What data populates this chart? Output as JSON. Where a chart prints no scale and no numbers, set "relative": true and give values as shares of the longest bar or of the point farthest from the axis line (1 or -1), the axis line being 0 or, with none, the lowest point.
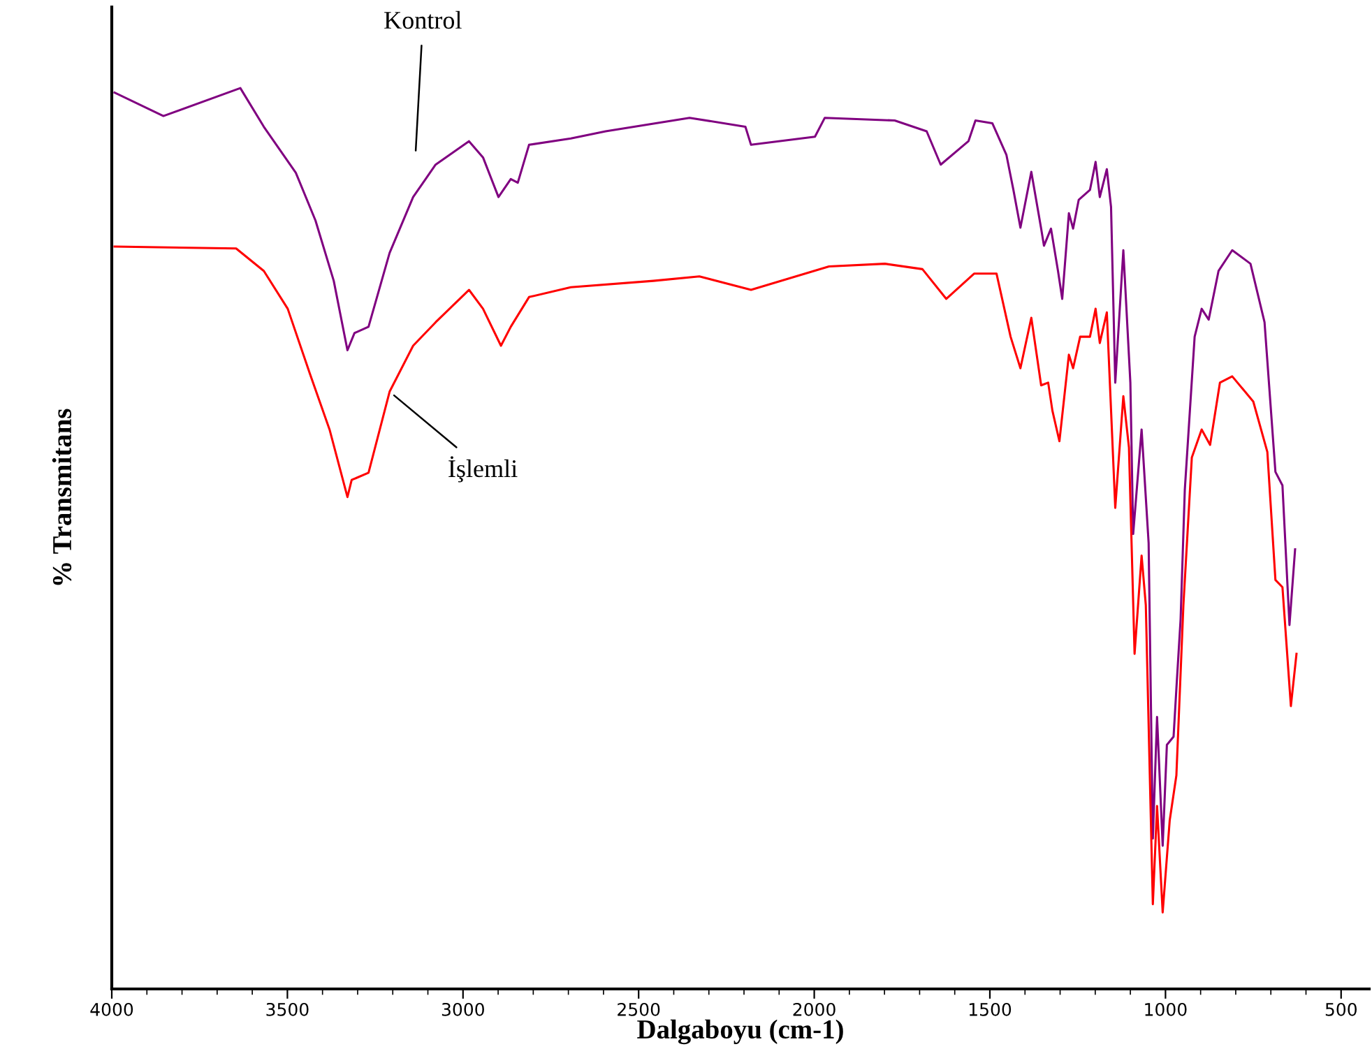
{
  "chart_data": {
    "type": "line",
    "relative": true,
    "xlabel": "Dalgaboyu (cm-1)",
    "ylabel": "% Transmitans",
    "xlim": [
      4000,
      420
    ],
    "xticks": [
      4000,
      {
        "value": 3900,
        "label": null
      },
      {
        "value": 3800,
        "label": null
      },
      {
        "value": 3700,
        "label": null
      },
      {
        "value": 3600,
        "label": null
      },
      3500,
      {
        "value": 3400,
        "label": null
      },
      {
        "value": 3300,
        "label": null
      },
      {
        "value": 3200,
        "label": null
      },
      {
        "value": 3100,
        "label": null
      },
      3000,
      {
        "value": 2900,
        "label": null
      },
      {
        "value": 2800,
        "label": null
      },
      {
        "value": 2700,
        "label": null
      },
      {
        "value": 2600,
        "label": null
      },
      2500,
      {
        "value": 2400,
        "label": null
      },
      {
        "value": 2300,
        "label": null
      },
      {
        "value": 2200,
        "label": null
      },
      {
        "value": 2100,
        "label": null
      },
      2000,
      {
        "value": 1900,
        "label": null
      },
      {
        "value": 1800,
        "label": null
      },
      {
        "value": 1700,
        "label": null
      },
      {
        "value": 1600,
        "label": null
      },
      1500,
      {
        "value": 1400,
        "label": null
      },
      {
        "value": 1300,
        "label": null
      },
      {
        "value": 1200,
        "label": null
      },
      {
        "value": 1100,
        "label": null
      },
      1000,
      {
        "value": 900,
        "label": null
      },
      {
        "value": 800,
        "label": null
      },
      {
        "value": 700,
        "label": null
      },
      {
        "value": 600,
        "label": null
      },
      500
    ],
    "grid": false,
    "legend": false,
    "marker": "none",
    "line_style": "solid",
    "series": [
      {
        "name": "Kontrol",
        "color": "#800080",
        "x": [
          3992,
          3853,
          3634,
          3567,
          3476,
          3420,
          3368,
          3329,
          3309,
          3269,
          3209,
          3142,
          3078,
          2983,
          2943,
          2899,
          2864,
          2844,
          2812,
          2693,
          2594,
          2355,
          2196,
          2180,
          1998,
          1970,
          1771,
          1680,
          1640,
          1561,
          1541,
          1493,
          1453,
          1433,
          1413,
          1382,
          1354,
          1346,
          1326,
          1306,
          1294,
          1275,
          1263,
          1247,
          1215,
          1199,
          1187,
          1167,
          1155,
          1143,
          1120,
          1100,
          1092,
          1068,
          1048,
          1036,
          1024,
          1008,
          996,
          977,
          969,
          957,
          945,
          917,
          897,
          877,
          849,
          810,
          758,
          718,
          687,
          667,
          647,
          631
        ],
        "values": [
          0.995,
          0.969,
          1.0,
          0.957,
          0.906,
          0.853,
          0.786,
          0.709,
          0.728,
          0.735,
          0.817,
          0.879,
          0.915,
          0.941,
          0.923,
          0.879,
          0.899,
          0.895,
          0.937,
          0.944,
          0.952,
          0.967,
          0.957,
          0.937,
          0.946,
          0.967,
          0.964,
          0.952,
          0.915,
          0.941,
          0.964,
          0.961,
          0.926,
          0.887,
          0.845,
          0.907,
          0.844,
          0.825,
          0.844,
          0.797,
          0.766,
          0.861,
          0.844,
          0.876,
          0.887,
          0.918,
          0.879,
          0.91,
          0.868,
          0.673,
          0.82,
          0.673,
          0.505,
          0.621,
          0.495,
          0.167,
          0.302,
          0.159,
          0.271,
          0.28,
          0.333,
          0.41,
          0.554,
          0.724,
          0.755,
          0.743,
          0.797,
          0.82,
          0.805,
          0.74,
          0.574,
          0.559,
          0.404,
          0.488
        ]
      },
      {
        "name": "İşlemli",
        "color": "#ff0000",
        "x": [
          3992,
          3646,
          3567,
          3499,
          3436,
          3380,
          3329,
          3317,
          3269,
          3209,
          3142,
          3078,
          2983,
          2943,
          2892,
          2864,
          2812,
          2693,
          2458,
          2327,
          2180,
          1958,
          1799,
          1692,
          1624,
          1545,
          1481,
          1441,
          1413,
          1382,
          1354,
          1334,
          1322,
          1302,
          1275,
          1263,
          1243,
          1215,
          1199,
          1187,
          1167,
          1143,
          1120,
          1104,
          1088,
          1068,
          1056,
          1036,
          1024,
          1008,
          988,
          969,
          949,
          925,
          897,
          873,
          845,
          810,
          750,
          710,
          687,
          667,
          643,
          627
        ],
        "values": [
          0.824,
          0.822,
          0.797,
          0.755,
          0.683,
          0.621,
          0.546,
          0.565,
          0.573,
          0.663,
          0.714,
          0.74,
          0.776,
          0.755,
          0.714,
          0.735,
          0.768,
          0.779,
          0.786,
          0.791,
          0.776,
          0.802,
          0.805,
          0.799,
          0.766,
          0.794,
          0.794,
          0.724,
          0.689,
          0.745,
          0.67,
          0.673,
          0.642,
          0.608,
          0.704,
          0.689,
          0.724,
          0.724,
          0.755,
          0.717,
          0.751,
          0.534,
          0.658,
          0.601,
          0.372,
          0.481,
          0.426,
          0.094,
          0.203,
          0.085,
          0.187,
          0.237,
          0.426,
          0.59,
          0.621,
          0.604,
          0.673,
          0.68,
          0.652,
          0.596,
          0.454,
          0.446,
          0.314,
          0.372
        ]
      }
    ]
  }
}
